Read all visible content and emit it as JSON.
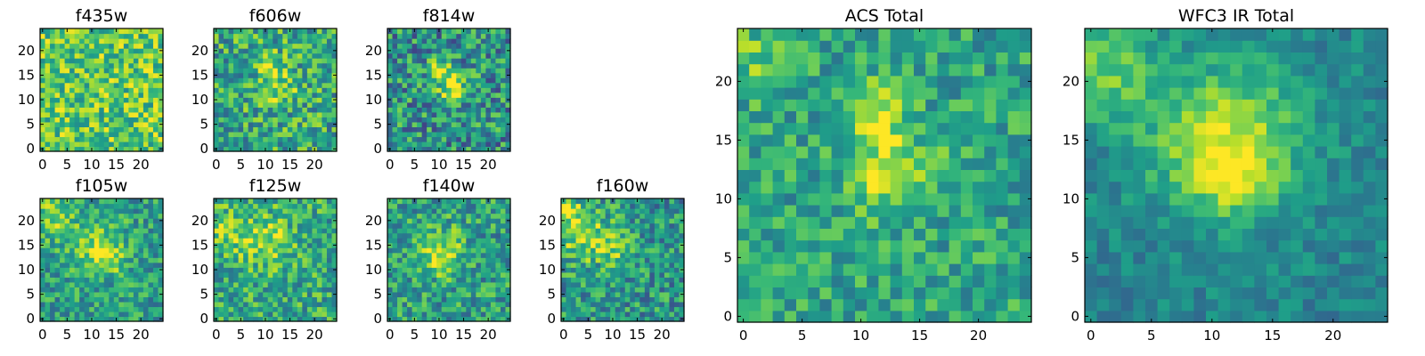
{
  "chart_data": [
    {
      "type": "heatmap",
      "title": "f435w",
      "grid_size": 25,
      "xticks": [
        0,
        5,
        10,
        15,
        20
      ],
      "yticks": [
        0,
        5,
        10,
        15,
        20
      ],
      "colormap": "viridis",
      "bg": 0.74,
      "noise": 0.26,
      "blobs": []
    },
    {
      "type": "heatmap",
      "title": "f606w",
      "grid_size": 25,
      "xticks": [
        0,
        5,
        10,
        15,
        20
      ],
      "yticks": [
        0,
        5,
        10,
        15,
        20
      ],
      "colormap": "viridis",
      "bg": 0.6,
      "noise": 0.28,
      "blobs": [
        {
          "x": 11,
          "y": 17,
          "amp": 0.25,
          "sigma": 2
        },
        {
          "x": 13,
          "y": 12,
          "amp": 0.3,
          "sigma": 2
        }
      ]
    },
    {
      "type": "heatmap",
      "title": "f814w",
      "grid_size": 25,
      "xticks": [
        0,
        5,
        10,
        15,
        20
      ],
      "yticks": [
        0,
        5,
        10,
        15,
        20
      ],
      "colormap": "viridis",
      "bg": 0.5,
      "noise": 0.3,
      "blobs": [
        {
          "x": 11,
          "y": 16,
          "amp": 0.4,
          "sigma": 1.8
        },
        {
          "x": 13,
          "y": 12,
          "amp": 0.45,
          "sigma": 2
        }
      ]
    },
    {
      "type": "heatmap",
      "title": "f105w",
      "grid_size": 25,
      "xticks": [
        0,
        5,
        10,
        15,
        20
      ],
      "yticks": [
        0,
        5,
        10,
        15,
        20
      ],
      "colormap": "viridis",
      "bg": 0.55,
      "noise": 0.22,
      "blobs": [
        {
          "x": 11,
          "y": 15,
          "amp": 0.3,
          "sigma": 4
        },
        {
          "x": 14,
          "y": 12,
          "amp": 0.2,
          "sigma": 2
        },
        {
          "x": 2,
          "y": 21,
          "amp": 0.25,
          "sigma": 3
        }
      ]
    },
    {
      "type": "heatmap",
      "title": "f125w",
      "grid_size": 25,
      "xticks": [
        0,
        5,
        10,
        15,
        20
      ],
      "yticks": [
        0,
        5,
        10,
        15,
        20
      ],
      "colormap": "viridis",
      "bg": 0.6,
      "noise": 0.25,
      "blobs": [
        {
          "x": 10,
          "y": 16,
          "amp": 0.3,
          "sigma": 3.5
        },
        {
          "x": 2,
          "y": 18,
          "amp": 0.2,
          "sigma": 3
        }
      ]
    },
    {
      "type": "heatmap",
      "title": "f140w",
      "grid_size": 25,
      "xticks": [
        0,
        5,
        10,
        15,
        20
      ],
      "yticks": [
        0,
        5,
        10,
        15,
        20
      ],
      "colormap": "viridis",
      "bg": 0.55,
      "noise": 0.25,
      "blobs": [
        {
          "x": 10,
          "y": 14,
          "amp": 0.3,
          "sigma": 3.5
        },
        {
          "x": 11,
          "y": 11,
          "amp": 0.2,
          "sigma": 1.5
        }
      ]
    },
    {
      "type": "heatmap",
      "title": "f160w",
      "grid_size": 25,
      "xticks": [
        0,
        5,
        10,
        15,
        20
      ],
      "yticks": [
        0,
        5,
        10,
        15,
        20
      ],
      "colormap": "viridis",
      "bg": 0.52,
      "noise": 0.25,
      "blobs": [
        {
          "x": 4,
          "y": 17,
          "amp": 0.35,
          "sigma": 4
        },
        {
          "x": 11,
          "y": 14,
          "amp": 0.2,
          "sigma": 2.5
        },
        {
          "x": 1,
          "y": 22,
          "amp": 0.25,
          "sigma": 2
        }
      ]
    },
    {
      "type": "heatmap",
      "title": "ACS Total",
      "grid_size": 25,
      "xticks": [
        0,
        5,
        10,
        15,
        20
      ],
      "yticks": [
        0,
        5,
        10,
        15,
        20
      ],
      "colormap": "viridis",
      "bg": 0.58,
      "noise": 0.2,
      "blobs": [
        {
          "x": 11,
          "y": 17,
          "amp": 0.35,
          "sigma": 2
        },
        {
          "x": 13,
          "y": 12,
          "amp": 0.4,
          "sigma": 2.2
        },
        {
          "x": 1,
          "y": 22,
          "amp": 0.2,
          "sigma": 2
        }
      ]
    },
    {
      "type": "heatmap",
      "title": "WFC3 IR Total",
      "grid_size": 25,
      "xticks": [
        0,
        5,
        10,
        15,
        20
      ],
      "yticks": [
        0,
        5,
        10,
        15,
        20
      ],
      "colormap": "viridis",
      "bg": 0.45,
      "noise": 0.12,
      "blobs": [
        {
          "x": 11,
          "y": 15,
          "amp": 0.45,
          "sigma": 4.5
        },
        {
          "x": 1,
          "y": 21,
          "amp": 0.3,
          "sigma": 3
        },
        {
          "x": 12,
          "y": 12,
          "amp": 0.25,
          "sigma": 2
        }
      ]
    }
  ]
}
